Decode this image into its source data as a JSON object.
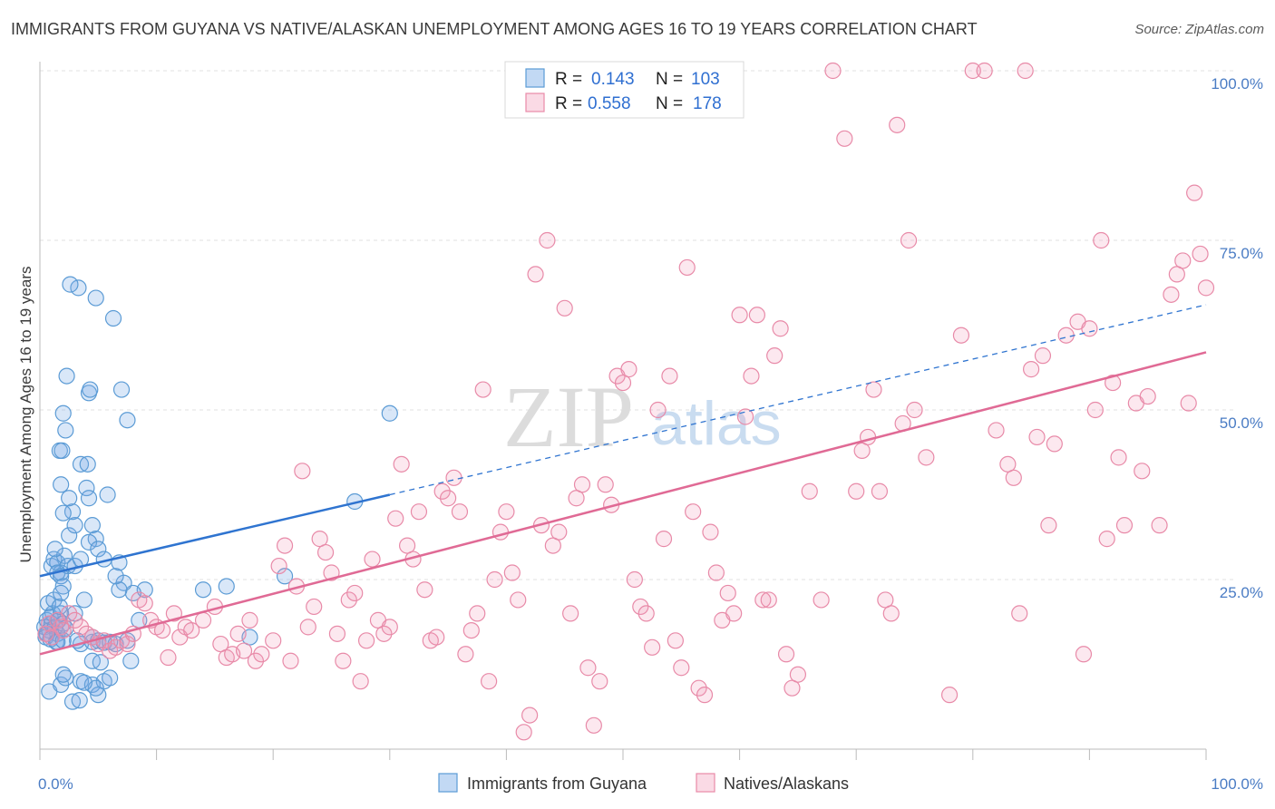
{
  "title": "IMMIGRANTS FROM GUYANA VS NATIVE/ALASKAN UNEMPLOYMENT AMONG AGES 16 TO 19 YEARS CORRELATION CHART",
  "source": "Source: ZipAtlas.com",
  "watermark": {
    "zip": "ZIP",
    "atlas": "atlas"
  },
  "colors": {
    "blue": "#5b9bd5",
    "blue_fill": "rgba(120,170,230,0.28)",
    "blue_line": "#2f74d0",
    "pink": "#e88aa8",
    "pink_fill": "rgba(240,150,180,0.22)",
    "pink_line": "#e06a95",
    "grid": "#e2e2e2",
    "tick_label": "#4a7cc4"
  },
  "legend": {
    "rows": [
      {
        "r_label": "R =",
        "r_value": "0.143",
        "n_label": "N =",
        "n_value": "103",
        "color": "blue"
      },
      {
        "r_label": "R =",
        "r_value": "0.558",
        "n_label": "N =",
        "n_value": "178",
        "color": "pink"
      }
    ]
  },
  "bottom_legend": [
    {
      "label": "Immigrants from Guyana",
      "color": "blue"
    },
    {
      "label": "Natives/Alaskans",
      "color": "pink"
    }
  ],
  "chart_data": {
    "type": "scatter",
    "title": "IMMIGRANTS FROM GUYANA VS NATIVE/ALASKAN UNEMPLOYMENT AMONG AGES 16 TO 19 YEARS CORRELATION CHART",
    "xlabel": "",
    "ylabel": "Unemployment Among Ages 16 to 19 years",
    "xlim": [
      0,
      100
    ],
    "ylim": [
      0,
      100
    ],
    "x_tick_labels": [
      {
        "value": 0,
        "label": "0.0%"
      },
      {
        "value": 100,
        "label": "100.0%"
      }
    ],
    "y_tick_labels": [
      {
        "value": 25,
        "label": "25.0%"
      },
      {
        "value": 50,
        "label": "50.0%"
      },
      {
        "value": 75,
        "label": "75.0%"
      },
      {
        "value": 100,
        "label": "100.0%"
      }
    ],
    "grid": true,
    "series": [
      {
        "name": "Immigrants from Guyana",
        "color": "blue",
        "r": 0.143,
        "n": 103,
        "trend": {
          "x": [
            0,
            30
          ],
          "y": [
            25.5,
            37.5
          ],
          "dashed_to": [
            100,
            65.5
          ]
        },
        "points": [
          [
            0.4,
            18
          ],
          [
            0.6,
            19
          ],
          [
            0.8,
            17.5
          ],
          [
            1,
            18.5
          ],
          [
            1.1,
            20
          ],
          [
            0.5,
            16.5
          ],
          [
            0.7,
            21.5
          ],
          [
            0.9,
            19.5
          ],
          [
            1.3,
            18
          ],
          [
            1.5,
            17
          ],
          [
            1.2,
            22
          ],
          [
            1.8,
            20
          ],
          [
            0.6,
            17
          ],
          [
            0.9,
            16.2
          ],
          [
            1.4,
            15.8
          ],
          [
            1.6,
            19
          ],
          [
            2,
            18.5
          ],
          [
            2.2,
            17.8
          ],
          [
            1.7,
            21
          ],
          [
            1,
            27
          ],
          [
            1.2,
            28
          ],
          [
            1.5,
            27.5
          ],
          [
            1.8,
            26
          ],
          [
            2.1,
            28.5
          ],
          [
            2.4,
            27
          ],
          [
            1.3,
            29.5
          ],
          [
            1.5,
            26
          ],
          [
            1.8,
            25.5
          ],
          [
            2,
            24
          ],
          [
            3,
            27
          ],
          [
            3.5,
            28
          ],
          [
            2.5,
            31.5
          ],
          [
            3,
            33
          ],
          [
            2.8,
            35
          ],
          [
            4.5,
            33
          ],
          [
            4.8,
            31
          ],
          [
            4.2,
            30.5
          ],
          [
            2,
            34.8
          ],
          [
            2.5,
            37
          ],
          [
            1.8,
            39
          ],
          [
            4,
            38.5
          ],
          [
            4.2,
            37
          ],
          [
            5.8,
            37.5
          ],
          [
            3.5,
            42
          ],
          [
            4.1,
            42
          ],
          [
            1.7,
            44
          ],
          [
            1.9,
            44
          ],
          [
            2,
            49.5
          ],
          [
            2.2,
            47
          ],
          [
            2.3,
            55
          ],
          [
            4.2,
            52.5
          ],
          [
            4.3,
            53
          ],
          [
            7,
            53
          ],
          [
            7.5,
            48.5
          ],
          [
            6.3,
            63.5
          ],
          [
            4.8,
            66.5
          ],
          [
            3.3,
            68
          ],
          [
            2.6,
            68.5
          ],
          [
            0.8,
            8.5
          ],
          [
            1.8,
            9.5
          ],
          [
            2.2,
            10.5
          ],
          [
            3.5,
            10
          ],
          [
            4.5,
            9.5
          ],
          [
            5.5,
            10
          ],
          [
            6,
            10.5
          ],
          [
            2,
            11
          ],
          [
            5,
            8
          ],
          [
            4.8,
            9
          ],
          [
            3.8,
            9.8
          ],
          [
            2.8,
            7
          ],
          [
            3.4,
            7.2
          ],
          [
            4.5,
            13
          ],
          [
            5.2,
            12.8
          ],
          [
            7.8,
            13
          ],
          [
            1.5,
            15.8
          ],
          [
            3.5,
            15.5
          ],
          [
            4.5,
            15.8
          ],
          [
            5.5,
            15.7
          ],
          [
            6.5,
            15.5
          ],
          [
            2,
            16
          ],
          [
            3.2,
            16
          ],
          [
            4.5,
            16.5
          ],
          [
            5,
            16
          ],
          [
            6,
            15.8
          ],
          [
            7.5,
            16
          ],
          [
            8.5,
            19
          ],
          [
            9,
            23.5
          ],
          [
            8,
            23
          ],
          [
            7.2,
            24.5
          ],
          [
            6.8,
            23.5
          ],
          [
            14,
            23.5
          ],
          [
            16,
            24
          ],
          [
            18,
            16.5
          ],
          [
            21,
            25.5
          ],
          [
            27,
            36.5
          ],
          [
            30,
            49.5
          ],
          [
            3,
            20
          ],
          [
            3.8,
            22
          ],
          [
            1.8,
            23
          ],
          [
            6.5,
            25.5
          ],
          [
            6.8,
            27.5
          ],
          [
            5,
            29.5
          ],
          [
            5.5,
            28
          ]
        ]
      },
      {
        "name": "Natives/Alaskans",
        "color": "pink",
        "r": 0.558,
        "n": 178,
        "trend": {
          "x": [
            0,
            100
          ],
          "y": [
            14,
            58.5
          ]
        },
        "points": [
          [
            0.5,
            17
          ],
          [
            0.8,
            18.5
          ],
          [
            1,
            16.5
          ],
          [
            1.5,
            19
          ],
          [
            1.8,
            18
          ],
          [
            2,
            17.5
          ],
          [
            2.5,
            20
          ],
          [
            3,
            19
          ],
          [
            3.5,
            18
          ],
          [
            4,
            17
          ],
          [
            4.5,
            16.5
          ],
          [
            5,
            15.5
          ],
          [
            5.5,
            16
          ],
          [
            6,
            14.5
          ],
          [
            6.5,
            15
          ],
          [
            7,
            16
          ],
          [
            7.5,
            15.5
          ],
          [
            8,
            17
          ],
          [
            8.5,
            22
          ],
          [
            9,
            21.5
          ],
          [
            9.5,
            19
          ],
          [
            10,
            18
          ],
          [
            10.5,
            17.5
          ],
          [
            11,
            13.5
          ],
          [
            11.5,
            20
          ],
          [
            12,
            16.5
          ],
          [
            12.5,
            18
          ],
          [
            13,
            17.5
          ],
          [
            14,
            19
          ],
          [
            15,
            21
          ],
          [
            15.5,
            15.5
          ],
          [
            16,
            13.5
          ],
          [
            16.5,
            14
          ],
          [
            17,
            17
          ],
          [
            17.5,
            14.5
          ],
          [
            18,
            19
          ],
          [
            18.5,
            13
          ],
          [
            19,
            14
          ],
          [
            20,
            16
          ],
          [
            20.5,
            27
          ],
          [
            21,
            30
          ],
          [
            21.5,
            13
          ],
          [
            22,
            24
          ],
          [
            22.5,
            41
          ],
          [
            23,
            18
          ],
          [
            23.5,
            21
          ],
          [
            24,
            31
          ],
          [
            24.5,
            29
          ],
          [
            25,
            26
          ],
          [
            25.5,
            17
          ],
          [
            26,
            13
          ],
          [
            26.5,
            22
          ],
          [
            27,
            23
          ],
          [
            27.5,
            10
          ],
          [
            28,
            16
          ],
          [
            28.5,
            28
          ],
          [
            29,
            19
          ],
          [
            29.5,
            17
          ],
          [
            30,
            18
          ],
          [
            30.5,
            34
          ],
          [
            31,
            42
          ],
          [
            31.5,
            30
          ],
          [
            32,
            28
          ],
          [
            32.5,
            35
          ],
          [
            33,
            23.5
          ],
          [
            33.5,
            16
          ],
          [
            34,
            16.5
          ],
          [
            34.5,
            38
          ],
          [
            35,
            37
          ],
          [
            35.5,
            40
          ],
          [
            36,
            35
          ],
          [
            36.5,
            14
          ],
          [
            37,
            17.5
          ],
          [
            37.5,
            20
          ],
          [
            38,
            53
          ],
          [
            38.5,
            10
          ],
          [
            39,
            25
          ],
          [
            39.5,
            32
          ],
          [
            40,
            35
          ],
          [
            40.5,
            26
          ],
          [
            41,
            22
          ],
          [
            41.5,
            2.5
          ],
          [
            42,
            5
          ],
          [
            42.5,
            70
          ],
          [
            43,
            33
          ],
          [
            43.5,
            75
          ],
          [
            44,
            30
          ],
          [
            44.5,
            32
          ],
          [
            45,
            65
          ],
          [
            45.5,
            20
          ],
          [
            46,
            37
          ],
          [
            46.5,
            39
          ],
          [
            47,
            12
          ],
          [
            47.5,
            3.5
          ],
          [
            48,
            10
          ],
          [
            48.5,
            39
          ],
          [
            49,
            36
          ],
          [
            49.5,
            55
          ],
          [
            50,
            54
          ],
          [
            50.5,
            56
          ],
          [
            51,
            25
          ],
          [
            51.5,
            21
          ],
          [
            52,
            20
          ],
          [
            52.5,
            15
          ],
          [
            53,
            50
          ],
          [
            53.5,
            31
          ],
          [
            54,
            55
          ],
          [
            54.5,
            16
          ],
          [
            55,
            12
          ],
          [
            55.5,
            71
          ],
          [
            56,
            35
          ],
          [
            56.5,
            9
          ],
          [
            57,
            8
          ],
          [
            57.5,
            32
          ],
          [
            58,
            26
          ],
          [
            58.5,
            19
          ],
          [
            59,
            23
          ],
          [
            59.5,
            20
          ],
          [
            60,
            64
          ],
          [
            60.5,
            49
          ],
          [
            61,
            55
          ],
          [
            61.5,
            64
          ],
          [
            62,
            22
          ],
          [
            62.5,
            22
          ],
          [
            63,
            58
          ],
          [
            63.5,
            62
          ],
          [
            64,
            14
          ],
          [
            64.5,
            9
          ],
          [
            65,
            11
          ],
          [
            66,
            38
          ],
          [
            67,
            22
          ],
          [
            68,
            100
          ],
          [
            69,
            90
          ],
          [
            70,
            38
          ],
          [
            70.5,
            44
          ],
          [
            71,
            46
          ],
          [
            71.5,
            53
          ],
          [
            72,
            38
          ],
          [
            72.5,
            22
          ],
          [
            73,
            20
          ],
          [
            73.5,
            92
          ],
          [
            74,
            48
          ],
          [
            74.5,
            75
          ],
          [
            75,
            50
          ],
          [
            76,
            43
          ],
          [
            78,
            8
          ],
          [
            79,
            61
          ],
          [
            80,
            100
          ],
          [
            81,
            100
          ],
          [
            82,
            47
          ],
          [
            83,
            42
          ],
          [
            83.5,
            40
          ],
          [
            84,
            20
          ],
          [
            84.5,
            100
          ],
          [
            85,
            56
          ],
          [
            85.5,
            46
          ],
          [
            86,
            58
          ],
          [
            86.5,
            33
          ],
          [
            87,
            45
          ],
          [
            88,
            61
          ],
          [
            89,
            63
          ],
          [
            89.5,
            14
          ],
          [
            90,
            62
          ],
          [
            90.5,
            50
          ],
          [
            91,
            75
          ],
          [
            91.5,
            31
          ],
          [
            92,
            54
          ],
          [
            92.5,
            43
          ],
          [
            93,
            33
          ],
          [
            94,
            51
          ],
          [
            94.5,
            41
          ],
          [
            95,
            52
          ],
          [
            96,
            33
          ],
          [
            97,
            67
          ],
          [
            97.5,
            70
          ],
          [
            98,
            72
          ],
          [
            98.5,
            51
          ],
          [
            99,
            82
          ],
          [
            99.5,
            73
          ],
          [
            100,
            68
          ]
        ]
      }
    ]
  }
}
